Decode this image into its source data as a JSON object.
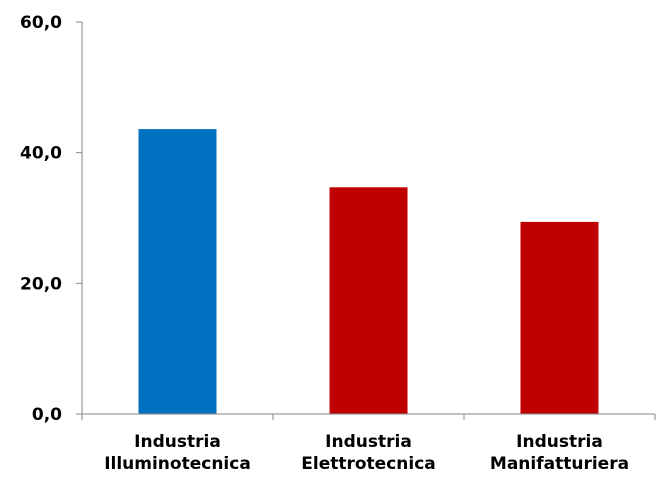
{
  "chart_data": {
    "type": "bar",
    "title": "",
    "xlabel": "",
    "ylabel": "",
    "categories": [
      [
        "Industria",
        "Illuminotecnica"
      ],
      [
        "Industria",
        "Elettrotecnica"
      ],
      [
        "Industria",
        "Manifatturiera"
      ]
    ],
    "values": [
      43.6,
      34.7,
      29.4
    ],
    "colors": [
      "#0070C0",
      "#C00000",
      "#C00000"
    ],
    "ylim": [
      0,
      60
    ],
    "yticks": [
      0,
      20,
      40,
      60
    ],
    "ytick_labels": [
      "0,0",
      "20,0",
      "40,0",
      "60,0"
    ],
    "grid": false,
    "legend": "none"
  }
}
